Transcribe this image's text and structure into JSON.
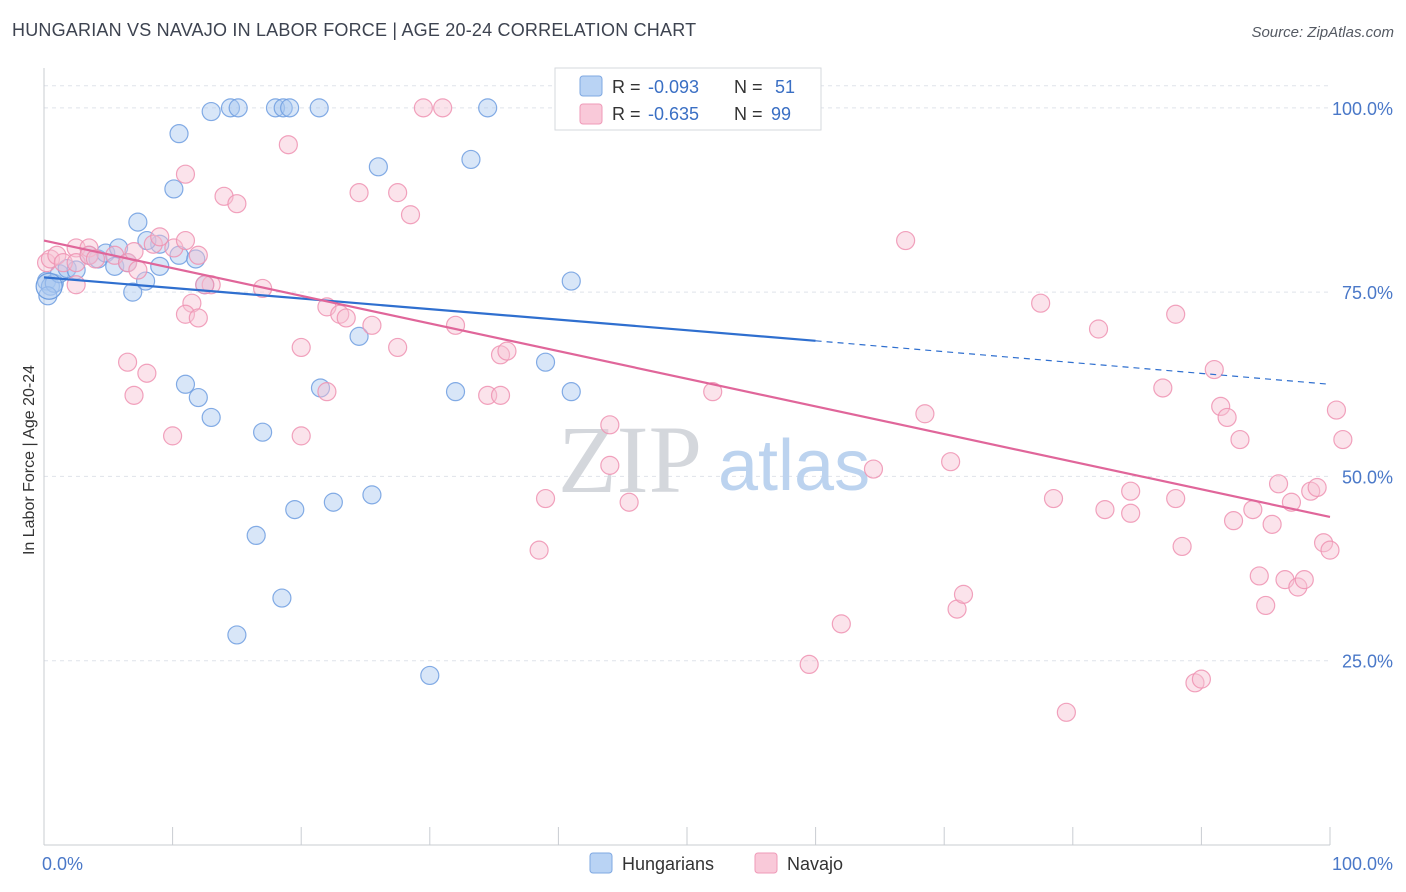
{
  "header": {
    "title": "HUNGARIAN VS NAVAJO IN LABOR FORCE | AGE 20-24 CORRELATION CHART",
    "source": "Source: ZipAtlas.com"
  },
  "watermark": {
    "zip": "ZIP",
    "atlas": "atlas"
  },
  "legend_top": {
    "rows": [
      {
        "r_label": "R =",
        "r_value": "-0.093",
        "n_label": "N =",
        "n_value": "51"
      },
      {
        "r_label": "R =",
        "r_value": "-0.635",
        "n_label": "N =",
        "n_value": "99"
      }
    ]
  },
  "legend_bottom": {
    "items": [
      "Hungarians",
      "Navajo"
    ]
  },
  "colors": {
    "hungarian_fill": "#a9c8f0",
    "hungarian_stroke": "#6f9ee0",
    "hungarian_line": "#2f6fcf",
    "navajo_fill": "#f7c0d2",
    "navajo_stroke": "#ee92b1",
    "navajo_line": "#e0669a",
    "grid": "#dfe3ea",
    "tick_text": "#4a78c8"
  },
  "chart_data": {
    "type": "scatter",
    "title": "HUNGARIAN VS NAVAJO IN LABOR FORCE | AGE 20-24 CORRELATION CHART",
    "xlabel": "",
    "ylabel": "In Labor Force | Age 20-24",
    "xlim": [
      0,
      100
    ],
    "ylim": [
      0,
      105
    ],
    "x_tick_labels": [
      "0.0%",
      "100.0%"
    ],
    "y_ticks": [
      25,
      50,
      75,
      100
    ],
    "y_tick_labels": [
      "25.0%",
      "50.0%",
      "75.0%",
      "100.0%"
    ],
    "grid": true,
    "legend_position": "top-center",
    "series": [
      {
        "name": "Hungarians",
        "R": -0.093,
        "N": 51,
        "trend": {
          "x0": 0,
          "y0": 77,
          "x1": 60,
          "y1": 68.4,
          "dashed_to_x": 100,
          "dashed_to_y": 62.5
        },
        "points": [
          [
            0.2,
            76.5
          ],
          [
            0.5,
            75.8
          ],
          [
            0.8,
            76.2
          ],
          [
            1.2,
            77.5
          ],
          [
            1.8,
            78.2
          ],
          [
            2.5,
            78
          ],
          [
            3.5,
            80
          ],
          [
            4.2,
            79.5
          ],
          [
            4.8,
            80.3
          ],
          [
            5.5,
            78.5
          ],
          [
            6.5,
            79
          ],
          [
            5.8,
            81
          ],
          [
            7.3,
            84.5
          ],
          [
            9,
            81.5
          ],
          [
            8,
            82
          ],
          [
            6.9,
            75
          ],
          [
            7.9,
            76.5
          ],
          [
            9,
            78.5
          ],
          [
            10.5,
            80
          ],
          [
            11.8,
            79.5
          ],
          [
            12.5,
            76
          ],
          [
            10.1,
            89
          ],
          [
            10.5,
            96.5
          ],
          [
            13,
            99.5
          ],
          [
            14.5,
            100
          ],
          [
            15.1,
            100
          ],
          [
            18,
            100
          ],
          [
            18.6,
            100
          ],
          [
            19.1,
            100
          ],
          [
            21.4,
            100
          ],
          [
            34.5,
            100
          ],
          [
            26,
            92
          ],
          [
            33.2,
            93
          ],
          [
            11,
            62.5
          ],
          [
            12,
            60.7
          ],
          [
            13,
            58
          ],
          [
            17,
            56
          ],
          [
            21.5,
            62
          ],
          [
            24.5,
            69
          ],
          [
            32,
            61.5
          ],
          [
            39,
            65.5
          ],
          [
            41,
            61.5
          ],
          [
            41,
            76.5
          ],
          [
            19.5,
            45.5
          ],
          [
            22.5,
            46.5
          ],
          [
            25.5,
            47.5
          ],
          [
            16.5,
            42
          ],
          [
            15,
            28.5
          ],
          [
            18.5,
            33.5
          ],
          [
            30,
            23
          ],
          [
            0.3,
            74.5
          ]
        ]
      },
      {
        "name": "Navajo",
        "R": -0.635,
        "N": 99,
        "trend": {
          "x0": 0,
          "y0": 82,
          "x1": 100,
          "y1": 44.5
        },
        "points": [
          [
            0.2,
            79
          ],
          [
            0.5,
            79.5
          ],
          [
            1,
            80
          ],
          [
            1.5,
            79
          ],
          [
            2.5,
            81
          ],
          [
            2.5,
            79
          ],
          [
            3.5,
            81
          ],
          [
            3.5,
            80
          ],
          [
            4,
            79.5
          ],
          [
            5.5,
            80
          ],
          [
            6.5,
            79
          ],
          [
            7,
            80.5
          ],
          [
            7.3,
            78
          ],
          [
            2.5,
            76
          ],
          [
            8.5,
            81.5
          ],
          [
            9,
            82.5
          ],
          [
            10.1,
            81
          ],
          [
            11,
            82
          ],
          [
            12,
            80
          ],
          [
            11.5,
            73.5
          ],
          [
            11,
            72
          ],
          [
            13,
            76
          ],
          [
            12,
            71.5
          ],
          [
            12.5,
            76
          ],
          [
            14,
            88
          ],
          [
            15,
            87
          ],
          [
            11,
            91
          ],
          [
            19,
            95
          ],
          [
            24.5,
            88.5
          ],
          [
            27.5,
            88.5
          ],
          [
            28.5,
            85.5
          ],
          [
            20,
            67.5
          ],
          [
            17,
            75.5
          ],
          [
            22,
            73
          ],
          [
            22,
            61.5
          ],
          [
            23,
            72
          ],
          [
            23.5,
            71.5
          ],
          [
            25.5,
            70.5
          ],
          [
            27.5,
            67.5
          ],
          [
            32,
            70.5
          ],
          [
            35.5,
            66.5
          ],
          [
            36,
            67
          ],
          [
            34.5,
            61
          ],
          [
            35.5,
            61
          ],
          [
            6.5,
            65.5
          ],
          [
            8,
            64
          ],
          [
            7,
            61
          ],
          [
            10,
            55.5
          ],
          [
            20,
            55.5
          ],
          [
            39,
            47
          ],
          [
            44,
            51.5
          ],
          [
            45.5,
            46.5
          ],
          [
            44,
            57
          ],
          [
            38.5,
            40
          ],
          [
            52,
            61.5
          ],
          [
            59.5,
            24.5
          ],
          [
            62,
            30
          ],
          [
            64.5,
            51
          ],
          [
            67,
            82
          ],
          [
            68.5,
            58.5
          ],
          [
            70.5,
            52
          ],
          [
            71,
            32
          ],
          [
            71.5,
            34
          ],
          [
            77.5,
            73.5
          ],
          [
            78.5,
            47
          ],
          [
            79.5,
            18
          ],
          [
            82,
            70
          ],
          [
            82.5,
            45.5
          ],
          [
            84.5,
            45
          ],
          [
            84.5,
            48
          ],
          [
            87,
            62
          ],
          [
            88,
            72
          ],
          [
            88,
            47
          ],
          [
            88.5,
            40.5
          ],
          [
            89.5,
            22
          ],
          [
            90,
            22.5
          ],
          [
            91,
            64.5
          ],
          [
            91.5,
            59.5
          ],
          [
            92,
            58
          ],
          [
            92.5,
            44
          ],
          [
            93,
            55
          ],
          [
            94,
            45.5
          ],
          [
            94.5,
            36.5
          ],
          [
            95,
            32.5
          ],
          [
            95.5,
            43.5
          ],
          [
            96,
            49
          ],
          [
            96.5,
            36
          ],
          [
            97,
            46.5
          ],
          [
            97.5,
            35
          ],
          [
            98,
            36
          ],
          [
            98.5,
            48
          ],
          [
            99,
            48.5
          ],
          [
            99.5,
            41
          ],
          [
            100,
            40
          ],
          [
            100.5,
            59
          ],
          [
            101,
            55
          ],
          [
            29.5,
            100
          ],
          [
            31,
            100
          ],
          [
            46.5,
            100
          ]
        ]
      }
    ]
  }
}
